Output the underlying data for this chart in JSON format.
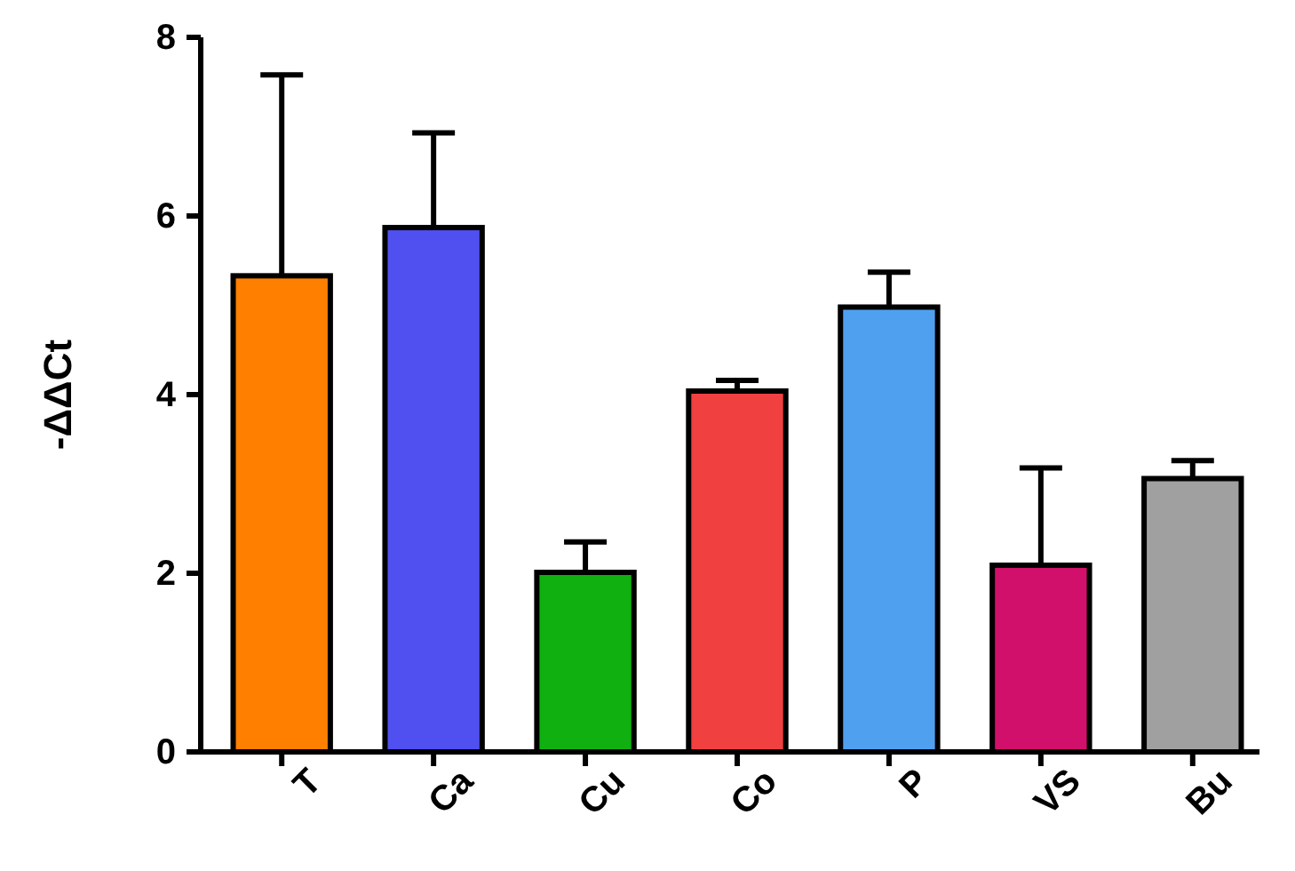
{
  "chart_data": {
    "type": "bar",
    "ylabel": "-ΔΔCt",
    "categories": [
      "T",
      "Ca",
      "Cu",
      "Co",
      "P",
      "VS",
      "Bu"
    ],
    "values": [
      5.33,
      5.87,
      2.01,
      4.04,
      4.98,
      2.09,
      3.06
    ],
    "colors": [
      "#ff8000",
      "#5050f0",
      "#10b010",
      "#f04040",
      "#50a0f0",
      "#d0106a",
      "#a0a0a0"
    ],
    "errors": [
      [
        5.33,
        7.58
      ],
      [
        5.87,
        6.93
      ],
      [
        2.01,
        2.35
      ],
      [
        4.04,
        4.16
      ],
      [
        4.98,
        5.37
      ],
      [
        2.09,
        3.18
      ],
      [
        3.06,
        3.26
      ]
    ],
    "ylim": [
      0,
      8
    ],
    "yticks": [
      0,
      2,
      4,
      6,
      8
    ],
    "grid": false
  }
}
